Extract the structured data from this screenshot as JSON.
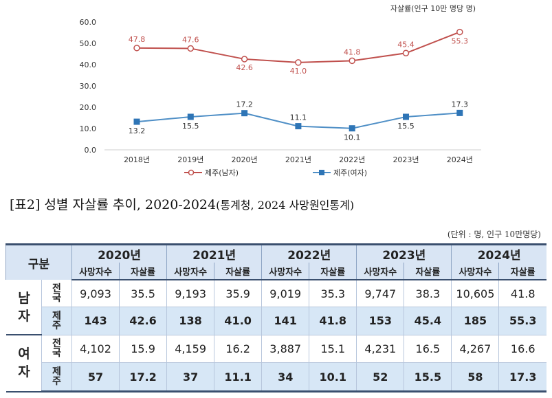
{
  "chart_data": {
    "type": "line",
    "unit_label": "자살률(인구 10만 명당 명)",
    "categories": [
      "2018년",
      "2019년",
      "2020년",
      "2021년",
      "2022년",
      "2023년",
      "2024년"
    ],
    "ylim": [
      0,
      60
    ],
    "yticks": [
      "0.0",
      "10.0",
      "20.0",
      "30.0",
      "40.0",
      "50.0",
      "60.0"
    ],
    "grid": false,
    "legend_position": "bottom",
    "series": [
      {
        "name": "제주(남자)",
        "color": "#c0504d",
        "marker": "circle",
        "values": [
          47.8,
          47.6,
          42.6,
          41.0,
          41.8,
          45.4,
          55.3
        ],
        "labels": [
          "47.8",
          "47.6",
          "42.6",
          "41.0",
          "41.8",
          "45.4",
          "55.3"
        ]
      },
      {
        "name": "제주(여자)",
        "color": "#4f8fc6",
        "marker": "square",
        "values": [
          13.2,
          15.5,
          17.2,
          11.1,
          10.1,
          15.5,
          17.3
        ],
        "labels": [
          "13.2",
          "15.5",
          "17.2",
          "11.1",
          "10.1",
          "15.5",
          "17.3"
        ]
      }
    ]
  },
  "caption": {
    "prefix": "[표2]",
    "title": "성별 자살률 추이,",
    "range": "2020-2024",
    "source": "(통계청, 2024 사망원인통계)"
  },
  "unit_note": "(단위 : 명, 인구 10만명당)",
  "table": {
    "corner": "구분",
    "years": [
      "2020년",
      "2021년",
      "2022년",
      "2023년",
      "2024년"
    ],
    "subheaders": [
      "사망자수",
      "자살률"
    ],
    "groups": [
      {
        "name": "남자",
        "rows": [
          {
            "label": "전국",
            "cells": [
              "9,093",
              "35.5",
              "9,193",
              "35.9",
              "9,019",
              "35.3",
              "9,747",
              "38.3",
              "10,605",
              "41.8"
            ]
          },
          {
            "label": "제주",
            "cells": [
              "143",
              "42.6",
              "138",
              "41.0",
              "141",
              "41.8",
              "153",
              "45.4",
              "185",
              "55.3"
            ]
          }
        ]
      },
      {
        "name": "여자",
        "rows": [
          {
            "label": "전국",
            "cells": [
              "4,102",
              "15.9",
              "4,159",
              "16.2",
              "3,887",
              "15.1",
              "4,231",
              "16.5",
              "4,267",
              "16.6"
            ]
          },
          {
            "label": "제주",
            "cells": [
              "57",
              "17.2",
              "37",
              "11.1",
              "34",
              "10.1",
              "52",
              "15.5",
              "58",
              "17.3"
            ]
          }
        ]
      }
    ]
  }
}
